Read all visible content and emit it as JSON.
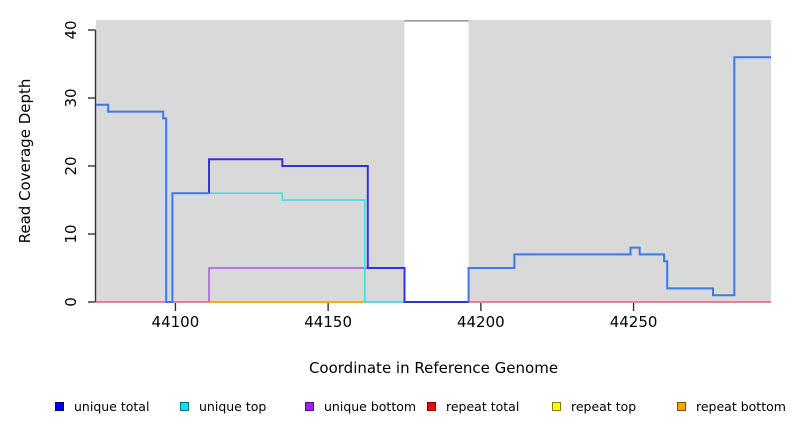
{
  "figure": {
    "xlabel": "Coordinate in Reference Genome",
    "ylabel": "Read Coverage Depth"
  },
  "legend": {
    "items": [
      {
        "label": "unique total",
        "color": "#0000EE"
      },
      {
        "label": "unique top",
        "color": "#00E5EE"
      },
      {
        "label": "unique bottom",
        "color": "#A020F0"
      },
      {
        "label": "repeat total",
        "color": "#FF0000"
      },
      {
        "label": "repeat top",
        "color": "#FFFF00"
      },
      {
        "label": "repeat bottom",
        "color": "#FFA500"
      }
    ]
  },
  "chart_data": {
    "type": "line",
    "subtype": "step-coverage-plot",
    "xlabel": "Coordinate in Reference Genome",
    "ylabel": "Read Coverage Depth",
    "xlim": [
      44074,
      44295
    ],
    "ylim": [
      0,
      41.5
    ],
    "grid": false,
    "legend_position": "bottom",
    "xticks": {
      "values": [
        44100,
        44150,
        44200,
        44250
      ],
      "labels": [
        "44100",
        "44150",
        "44200",
        "44250"
      ]
    },
    "yticks": {
      "values": [
        0,
        10,
        20,
        30,
        40
      ],
      "labels": [
        "0",
        "10",
        "20",
        "30",
        "40"
      ]
    },
    "shaded_regions": {
      "color": "#D9D9D9",
      "intervals": [
        [
          44074,
          44175
        ],
        [
          44196,
          44295
        ]
      ]
    },
    "gap_cap_line": {
      "color": "#999999",
      "from": 44175,
      "to": 44196
    },
    "axis_color": "#333333",
    "series": [
      {
        "name": "repeat total",
        "color": "#E25C7C",
        "width": 1.4,
        "points": [
          [
            44074,
            0
          ],
          [
            44295,
            0
          ]
        ]
      },
      {
        "name": "repeat top",
        "color": "#FFFF00",
        "width": 1.4,
        "points": [
          [
            44111,
            0
          ],
          [
            44162,
            0
          ]
        ]
      },
      {
        "name": "repeat bottom",
        "color": "#FFA500",
        "width": 1.8,
        "points": [
          [
            44111,
            0
          ],
          [
            44162,
            0
          ]
        ]
      },
      {
        "name": "unique top baseline blend",
        "color": "#A3D9A5",
        "width": 1.6,
        "points": [
          [
            44162,
            0
          ],
          [
            44175,
            0
          ]
        ]
      },
      {
        "name": "unique bottom",
        "color": "#AC68E0",
        "width": 1.7,
        "points": [
          [
            44111,
            0
          ],
          [
            44111,
            5
          ],
          [
            44175,
            5
          ],
          [
            44175,
            0
          ]
        ]
      },
      {
        "name": "unique top",
        "color": "#45DFE6",
        "width": 1.7,
        "points": [
          [
            44111,
            16
          ],
          [
            44135,
            16
          ],
          [
            44135,
            15
          ],
          [
            44162,
            15
          ],
          [
            44162,
            0
          ],
          [
            44175,
            0
          ]
        ]
      },
      {
        "name": "unique total",
        "color": "#3232DC",
        "width": 2,
        "points": [
          [
            44111,
            16
          ],
          [
            44111,
            21
          ],
          [
            44135,
            21
          ],
          [
            44135,
            20
          ],
          [
            44163,
            20
          ],
          [
            44163,
            5
          ],
          [
            44175,
            5
          ],
          [
            44175,
            0
          ],
          [
            44196,
            0
          ]
        ]
      },
      {
        "name": "total coverage left",
        "color": "#3D78E8",
        "width": 2,
        "points": [
          [
            44074,
            29
          ],
          [
            44078,
            29
          ],
          [
            44078,
            28
          ],
          [
            44096,
            28
          ],
          [
            44096,
            27
          ],
          [
            44097,
            27
          ],
          [
            44097,
            0
          ],
          [
            44099,
            0
          ],
          [
            44099,
            16
          ],
          [
            44111,
            16
          ]
        ]
      },
      {
        "name": "total coverage right",
        "color": "#3D78E8",
        "width": 2,
        "points": [
          [
            44196,
            0
          ],
          [
            44196,
            5
          ],
          [
            44211,
            5
          ],
          [
            44211,
            7
          ],
          [
            44249,
            7
          ],
          [
            44249,
            8
          ],
          [
            44252,
            8
          ],
          [
            44252,
            7
          ],
          [
            44260,
            7
          ],
          [
            44260,
            6
          ],
          [
            44261,
            6
          ],
          [
            44261,
            2
          ],
          [
            44276,
            2
          ],
          [
            44276,
            1
          ],
          [
            44283,
            1
          ],
          [
            44283,
            36
          ],
          [
            44295,
            36
          ]
        ]
      }
    ]
  }
}
